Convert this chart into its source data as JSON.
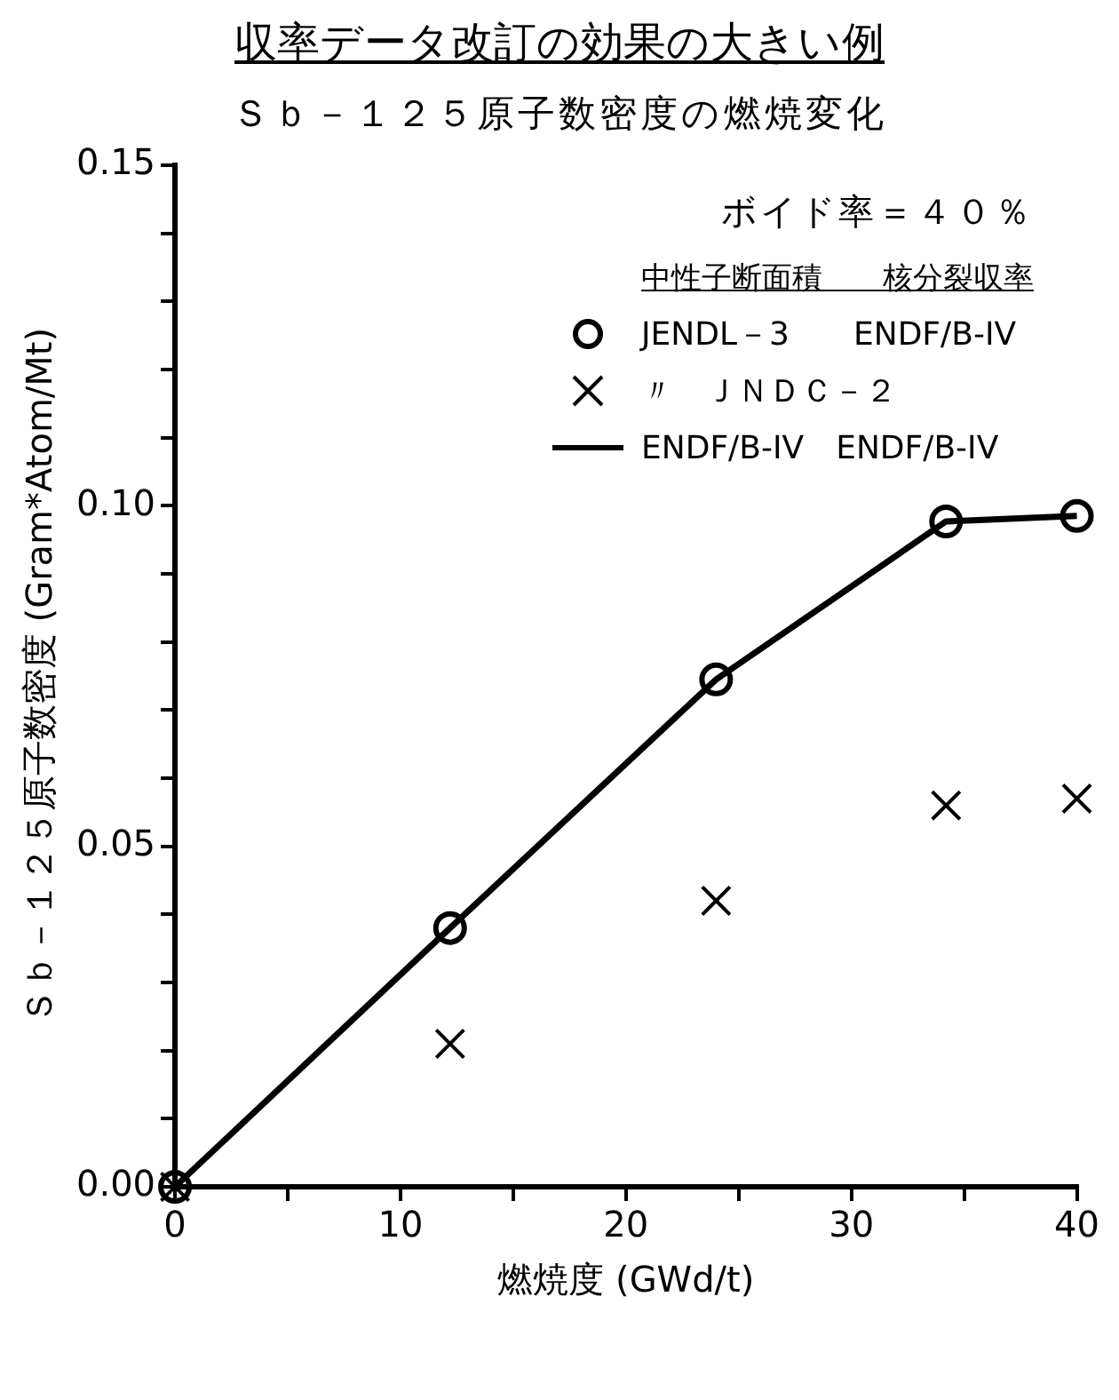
{
  "chart_data": {
    "type": "scatter",
    "title": "収率データ改訂の効果の大きい例",
    "subtitle": "Ｓｂ－１２５原子数密度の燃焼変化",
    "xlabel": "燃焼度 (GWd/t)",
    "ylabel": "Ｓｂ－１２５原子数密度 (Gram*Atom/Mt)",
    "legend_title": "中性子断面積　　核分裂収率",
    "annotations": [
      "ボイド率＝４０％"
    ],
    "xlim": [
      0,
      40
    ],
    "ylim": [
      0,
      0.15
    ],
    "xticks": [
      0,
      {
        "value": 5,
        "label": null
      },
      10,
      {
        "value": 15,
        "label": null
      },
      20,
      {
        "value": 25,
        "label": null
      },
      30,
      {
        "value": 35,
        "label": null
      },
      40
    ],
    "yticks": [
      {
        "value": 0,
        "label": "0.00"
      },
      {
        "value": 0.01,
        "label": null
      },
      {
        "value": 0.02,
        "label": null
      },
      {
        "value": 0.03,
        "label": null
      },
      {
        "value": 0.04,
        "label": null
      },
      {
        "value": 0.05,
        "label": "0.05"
      },
      {
        "value": 0.06,
        "label": null
      },
      {
        "value": 0.07,
        "label": null
      },
      {
        "value": 0.08,
        "label": null
      },
      {
        "value": 0.09,
        "label": null
      },
      {
        "value": 0.1,
        "label": "0.10"
      },
      {
        "value": 0.11,
        "label": null
      },
      {
        "value": 0.12,
        "label": null
      },
      {
        "value": 0.13,
        "label": null
      },
      {
        "value": 0.14,
        "label": null
      },
      {
        "value": 0.15,
        "label": "0.15"
      }
    ],
    "grid": false,
    "legend": "top right",
    "series": [
      {
        "name": "JENDL－3　　ENDF/B-IV",
        "type": "scatter",
        "marker": "circle",
        "color": "#000000",
        "x": [
          0,
          12.2,
          24,
          34.2,
          40
        ],
        "values": [
          0,
          0.038,
          0.0745,
          0.0977,
          0.0985
        ]
      },
      {
        "name": "〃　ＪＮＤＣ－２",
        "type": "scatter",
        "marker": "cross",
        "color": "#000000",
        "x": [
          0,
          12.2,
          24,
          34.2,
          40
        ],
        "values": [
          0,
          0.021,
          0.042,
          0.056,
          0.057
        ]
      },
      {
        "name": "ENDF/B-IV　ENDF/B-IV",
        "type": "line",
        "marker": "none",
        "line_style": "solid",
        "color": "#000000",
        "x": [
          0,
          12.2,
          24,
          34.2,
          40
        ],
        "values": [
          0,
          0.038,
          0.0745,
          0.0977,
          0.0985
        ]
      }
    ]
  }
}
